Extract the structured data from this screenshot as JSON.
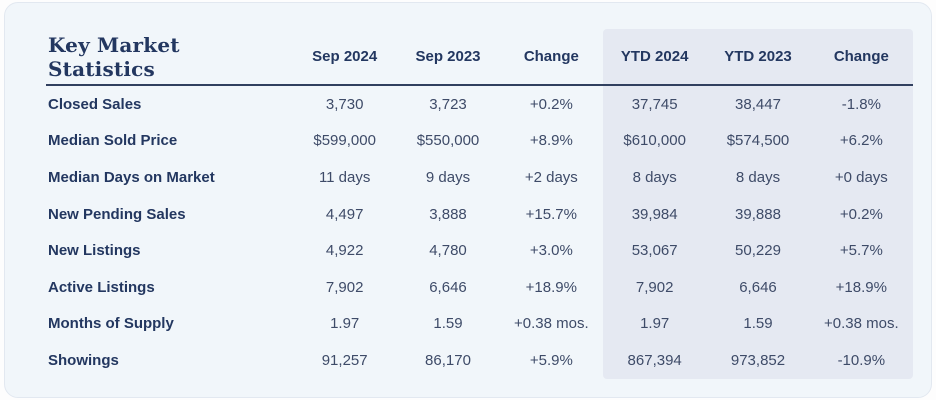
{
  "card": {
    "title": "Key Market Statistics",
    "columns": [
      "Sep 2024",
      "Sep 2023",
      "Change",
      "YTD 2024",
      "YTD 2023",
      "Change"
    ],
    "rows": [
      {
        "label": "Closed Sales",
        "values": [
          "3,730",
          "3,723",
          "+0.2%",
          "37,745",
          "38,447",
          "-1.8%"
        ]
      },
      {
        "label": "Median Sold Price",
        "values": [
          "$599,000",
          "$550,000",
          "+8.9%",
          "$610,000",
          "$574,500",
          "+6.2%"
        ]
      },
      {
        "label": "Median Days on Market",
        "values": [
          "11 days",
          "9 days",
          "+2 days",
          "8 days",
          "8 days",
          "+0 days"
        ]
      },
      {
        "label": "New Pending Sales",
        "values": [
          "4,497",
          "3,888",
          "+15.7%",
          "39,984",
          "39,888",
          "+0.2%"
        ]
      },
      {
        "label": "New Listings",
        "values": [
          "4,922",
          "4,780",
          "+3.0%",
          "53,067",
          "50,229",
          "+5.7%"
        ]
      },
      {
        "label": "Active Listings",
        "values": [
          "7,902",
          "6,646",
          "+18.9%",
          "7,902",
          "6,646",
          "+18.9%"
        ]
      },
      {
        "label": "Months of Supply",
        "values": [
          "1.97",
          "1.59",
          "+0.38 mos.",
          "1.97",
          "1.59",
          "+0.38 mos."
        ]
      },
      {
        "label": "Showings",
        "values": [
          "91,257",
          "86,170",
          "+5.9%",
          "867,394",
          "973,852",
          "-10.9%"
        ]
      }
    ],
    "colors": {
      "card_bg": "#f1f6fa",
      "ytd_highlight": "#e5e9f2",
      "navy_text": "#233760",
      "value_text": "#3e4b68"
    }
  }
}
